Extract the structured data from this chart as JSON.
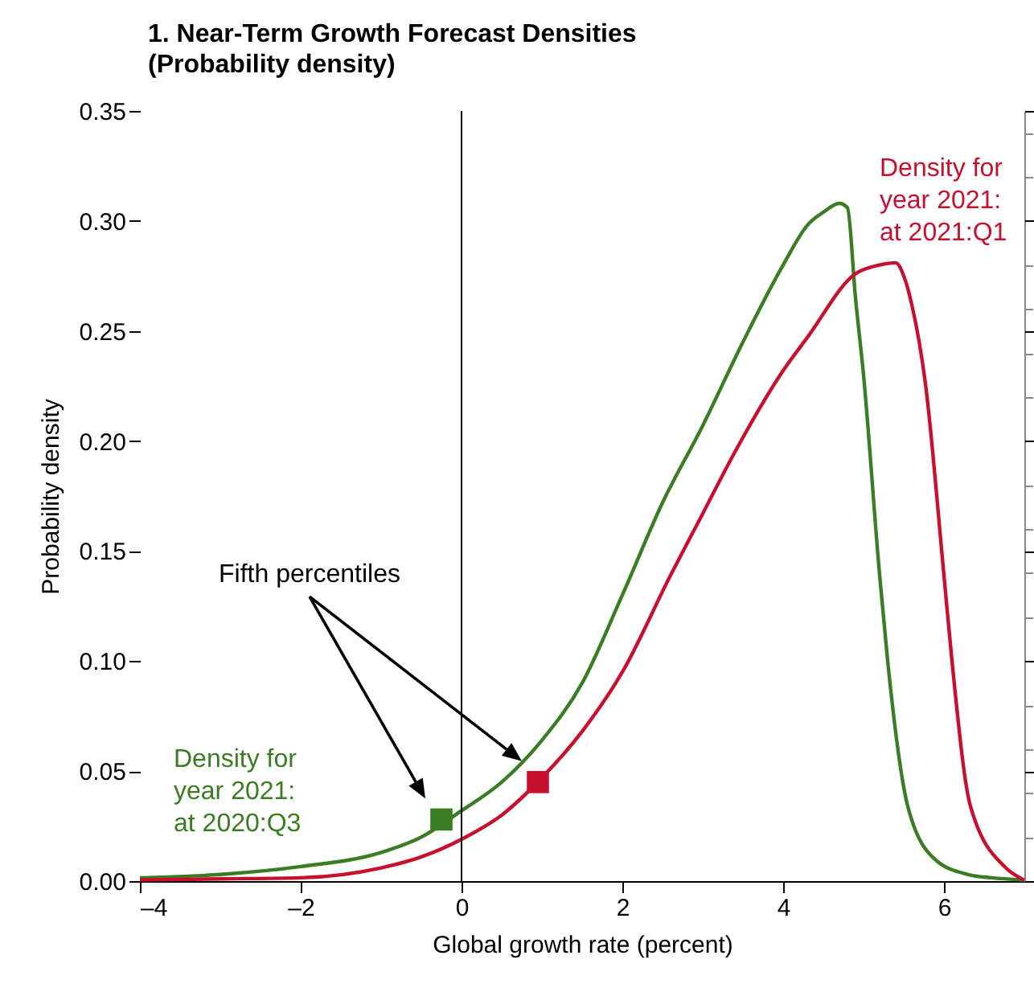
{
  "chart_data": {
    "type": "line",
    "title": "1. Near-Term Growth Forecast Densities",
    "subtitle": "(Probability density)",
    "xlabel": "Global growth rate (percent)",
    "ylabel": "Probability density",
    "xlim": [
      -4,
      7
    ],
    "xticks": [
      {
        "value": -4,
        "label": "–4"
      },
      {
        "value": -2,
        "label": "–2"
      },
      0,
      2,
      4,
      6
    ],
    "ylim": [
      0,
      0.35
    ],
    "yticks": [
      {
        "value": 0,
        "label": "0.00"
      },
      {
        "value": 0.05,
        "label": "0.05"
      },
      {
        "value": 0.1,
        "label": "0.10"
      },
      {
        "value": 0.15,
        "label": "0.15"
      },
      {
        "value": 0.2,
        "label": "0.20"
      },
      {
        "value": 0.25,
        "label": "0.25"
      },
      {
        "value": 0.3,
        "label": "0.30"
      },
      {
        "value": 0.35,
        "label": "0.35"
      }
    ],
    "grid": false,
    "legend": false,
    "line_style": "solid",
    "series": [
      {
        "name": "Density for year 2021: at 2020:Q3",
        "color": "#3a7d22",
        "x": [
          -4,
          -3,
          -2,
          -1,
          -0.5,
          0,
          0.5,
          1,
          1.5,
          2,
          2.5,
          3,
          3.5,
          4,
          4.3,
          4.5,
          4.7,
          4.8,
          4.9,
          5.0,
          5.2,
          5.3,
          5.55,
          5.9,
          6.3,
          6.6,
          7
        ],
        "values": [
          0.0015,
          0.003,
          0.0066,
          0.013,
          0.02,
          0.032,
          0.045,
          0.064,
          0.09,
          0.13,
          0.172,
          0.207,
          0.245,
          0.28,
          0.298,
          0.304,
          0.308,
          0.306,
          0.265,
          0.23,
          0.139,
          0.1,
          0.034,
          0.0095,
          0.003,
          0.0015,
          0.0005
        ]
      },
      {
        "name": "Density for year 2021: at 2021:Q1",
        "color": "#c8102e",
        "x": [
          -4,
          -3,
          -2,
          -1,
          -0.5,
          0,
          0.5,
          1,
          1.5,
          2,
          2.6,
          3,
          3.4,
          4,
          4.3,
          4.9,
          5.2,
          5.4,
          5.5,
          5.6,
          5.77,
          6.0,
          6.1,
          6.33,
          6.77,
          7
        ],
        "values": [
          0.0005,
          0.001,
          0.0015,
          0.006,
          0.011,
          0.019,
          0.03,
          0.047,
          0.068,
          0.095,
          0.139,
          0.167,
          0.195,
          0.232,
          0.247,
          0.276,
          0.28,
          0.281,
          0.275,
          0.262,
          0.226,
          0.139,
          0.1,
          0.034,
          0.006,
          0.0005
        ]
      },
      {
        "type": "scatter",
        "marker": "square",
        "color": "#3a7d22",
        "x": [
          -0.25
        ],
        "values": [
          0.028
        ]
      },
      {
        "type": "scatter",
        "marker": "square",
        "color": "#c8102e",
        "x": [
          0.95
        ],
        "values": [
          0.045
        ]
      }
    ],
    "ref_lines": [
      {
        "axis": "x",
        "value": 0,
        "color": "#000000"
      }
    ],
    "annotations": [
      "Fifth percentiles"
    ]
  }
}
